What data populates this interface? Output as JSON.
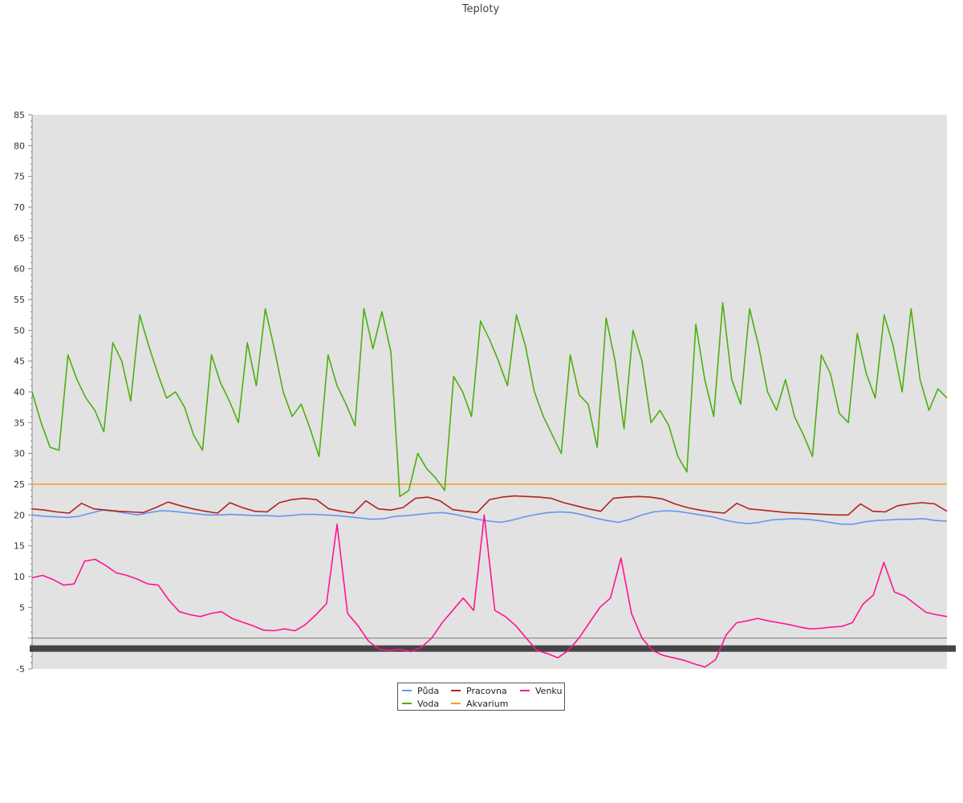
{
  "chart_data": {
    "type": "line",
    "title": "Teploty",
    "xlabel": "",
    "ylabel": "",
    "ylim": [
      -5,
      85
    ],
    "yticks": [
      -5,
      5,
      10,
      15,
      20,
      25,
      30,
      35,
      40,
      45,
      50,
      55,
      60,
      65,
      70,
      75,
      80,
      85
    ],
    "grid": false,
    "background": "#e2e2e2",
    "legend_position": "bottom-center",
    "x_points": 73,
    "series": [
      {
        "name": "Půda",
        "color": "#6495ed",
        "values": [
          20.0,
          19.8,
          19.7,
          19.6,
          19.8,
          20.3,
          20.8,
          20.6,
          20.3,
          20.0,
          20.4,
          20.7,
          20.6,
          20.4,
          20.2,
          20.0,
          20.0,
          20.1,
          20.0,
          19.9,
          19.9,
          19.8,
          19.9,
          20.1,
          20.1,
          20.0,
          19.9,
          19.7,
          19.5,
          19.3,
          19.4,
          19.8,
          19.9,
          20.1,
          20.3,
          20.4,
          20.1,
          19.7,
          19.3,
          19.0,
          18.8,
          19.2,
          19.7,
          20.1,
          20.4,
          20.5,
          20.4,
          20.0,
          19.5,
          19.1,
          18.8,
          19.3,
          20.0,
          20.5,
          20.7,
          20.6,
          20.3,
          20.0,
          19.7,
          19.2,
          18.8,
          18.6,
          18.8,
          19.2,
          19.3,
          19.4,
          19.3,
          19.1,
          18.8,
          18.5,
          18.5,
          18.9,
          19.1,
          19.2,
          19.3,
          19.3,
          19.4,
          19.1,
          19.0
        ]
      },
      {
        "name": "Pracovna",
        "color": "#b22222",
        "values": [
          21.0,
          20.8,
          20.5,
          20.3,
          21.9,
          21.0,
          20.8,
          20.6,
          20.5,
          20.4,
          21.2,
          22.1,
          21.5,
          21.0,
          20.6,
          20.3,
          22.0,
          21.2,
          20.6,
          20.5,
          22.0,
          22.5,
          22.7,
          22.5,
          21.0,
          20.6,
          20.3,
          22.3,
          21.0,
          20.8,
          21.2,
          22.7,
          22.9,
          22.3,
          20.9,
          20.6,
          20.4,
          22.5,
          22.9,
          23.1,
          23.0,
          22.9,
          22.7,
          22.0,
          21.5,
          21.0,
          20.6,
          22.7,
          22.9,
          23.0,
          22.9,
          22.6,
          21.8,
          21.2,
          20.8,
          20.5,
          20.3,
          21.9,
          21.0,
          20.8,
          20.6,
          20.4,
          20.3,
          20.2,
          20.1,
          20.0,
          20.0,
          21.8,
          20.6,
          20.5,
          21.5,
          21.8,
          22.0,
          21.8,
          20.6
        ]
      },
      {
        "name": "Voda",
        "color": "#4caf0f",
        "values": [
          40.0,
          35.0,
          31.0,
          30.5,
          46.0,
          42.0,
          39.0,
          37.0,
          33.5,
          48.0,
          45.0,
          38.5,
          52.5,
          47.5,
          43.0,
          39.0,
          40.0,
          37.5,
          33.0,
          30.5,
          46.0,
          41.5,
          38.5,
          35.0,
          48.0,
          41.0,
          53.5,
          47.0,
          40.0,
          36.0,
          38.0,
          34.0,
          29.5,
          46.0,
          41.0,
          38.0,
          34.5,
          53.5,
          47.0,
          53.0,
          46.5,
          23.0,
          24.0,
          30.0,
          27.5,
          26.0,
          24.0,
          42.5,
          40.0,
          36.0,
          51.5,
          48.5,
          45.0,
          41.0,
          52.5,
          47.5,
          40.0,
          36.0,
          33.0,
          30.0,
          46.0,
          39.5,
          38.0,
          31.0,
          52.0,
          45.0,
          34.0,
          50.0,
          45.0,
          35.0,
          37.0,
          34.5,
          29.5,
          27.0,
          51.0,
          42.0,
          36.0,
          54.5,
          42.0,
          38.0,
          53.5,
          47.5,
          40.0,
          37.0,
          42.0,
          36.0,
          33.0,
          29.5,
          46.0,
          43.0,
          36.5,
          35.0,
          49.5,
          43.0,
          39.0,
          52.5,
          47.5,
          40.0,
          53.5,
          42.0,
          37.0,
          40.5,
          39.0
        ]
      },
      {
        "name": "Akvarium",
        "color": "#f4a21b",
        "values": [
          25.0,
          25.0,
          25.0,
          25.0,
          25.0,
          25.0,
          25.0,
          25.0,
          25.0,
          25.0,
          25.0,
          25.0,
          25.0,
          25.0,
          25.0,
          25.0,
          25.0,
          25.0,
          25.0,
          25.0,
          25.0,
          25.0,
          25.0,
          25.0,
          25.0,
          25.0,
          25.0,
          25.0,
          25.0,
          25.0,
          25.0,
          25.0,
          25.0,
          25.0,
          25.0,
          25.0,
          25.0
        ]
      },
      {
        "name": "Venku",
        "color": "#ff1493",
        "values": [
          9.8,
          10.2,
          9.5,
          8.6,
          8.8,
          12.5,
          12.8,
          11.8,
          10.6,
          10.2,
          9.6,
          8.8,
          8.6,
          6.2,
          4.3,
          3.8,
          3.5,
          4.0,
          4.3,
          3.2,
          2.6,
          2.0,
          1.3,
          1.2,
          1.5,
          1.2,
          2.2,
          3.8,
          5.6,
          18.5,
          4.0,
          2.0,
          -0.5,
          -1.8,
          -2.0,
          -1.8,
          -2.2,
          -1.5,
          0.0,
          2.5,
          4.5,
          6.5,
          4.5,
          20.0,
          4.5,
          3.5,
          2.0,
          0.0,
          -2.0,
          -2.5,
          -3.2,
          -2.0,
          0.0,
          2.5,
          5.0,
          6.5,
          13.0,
          4.0,
          0.0,
          -2.0,
          -2.8,
          -3.2,
          -3.6,
          -4.2,
          -4.7,
          -3.5,
          0.5,
          2.5,
          2.8,
          3.2,
          2.8,
          2.5,
          2.2,
          1.8,
          1.5,
          1.6,
          1.8,
          1.9,
          2.5,
          5.5,
          7.0,
          12.3,
          7.5,
          6.8,
          5.5,
          4.2,
          3.8,
          3.5
        ]
      }
    ]
  }
}
